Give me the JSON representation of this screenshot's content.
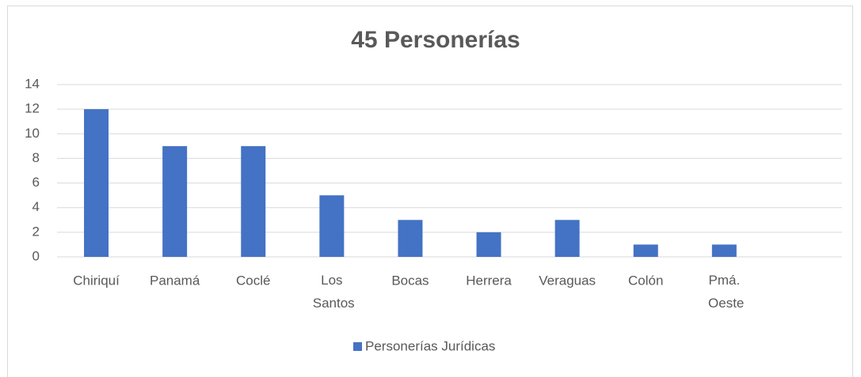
{
  "chart_data": {
    "type": "bar",
    "title": "45 Personerías",
    "categories": [
      "Chiriquí",
      "Panamá",
      "Coclé",
      "Los Santos",
      "Bocas",
      "Herrera",
      "Veraguas",
      "Colón",
      "Pmá. Oeste",
      null
    ],
    "series": [
      {
        "name": "Personerías Jurídicas",
        "color": "#4472c4",
        "values": [
          12,
          9,
          9,
          5,
          3,
          2,
          3,
          1,
          1,
          null
        ]
      }
    ],
    "ylim": [
      0,
      14
    ],
    "yticks": [
      0,
      2,
      4,
      6,
      8,
      10,
      12,
      14
    ],
    "grid": true,
    "legend": "bottom"
  }
}
